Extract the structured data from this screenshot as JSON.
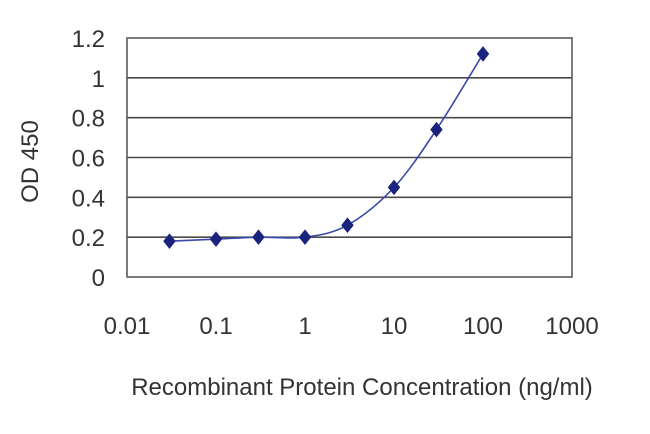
{
  "chart_data": {
    "type": "line",
    "title": "",
    "xlabel": "Recombinant Protein Concentration (ng/ml)",
    "ylabel": "OD 450",
    "x_scale": "log",
    "xlim": [
      0.01,
      1000
    ],
    "ylim": [
      0,
      1.2
    ],
    "x_ticks": [
      "0.01",
      "0.1",
      "1",
      "10",
      "100",
      "1000"
    ],
    "y_ticks": [
      "0",
      "0.2",
      "0.4",
      "0.6",
      "0.8",
      "1",
      "1.2"
    ],
    "grid": "horizontal",
    "legend": "none",
    "series": [
      {
        "color": "#1a237e",
        "marker": "diamond",
        "x": [
          0.03,
          0.1,
          0.3,
          1,
          3,
          10,
          30,
          100
        ],
        "y": [
          0.18,
          0.19,
          0.2,
          0.2,
          0.26,
          0.45,
          0.74,
          1.12
        ]
      }
    ]
  }
}
